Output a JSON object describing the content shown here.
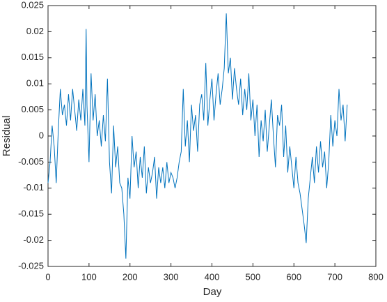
{
  "chart_data": {
    "type": "line",
    "xlabel": "Day",
    "ylabel": "Residual",
    "x": [
      0,
      5,
      10,
      15,
      20,
      25,
      30,
      35,
      40,
      45,
      50,
      55,
      60,
      65,
      70,
      75,
      80,
      85,
      90,
      93,
      95,
      100,
      105,
      110,
      115,
      120,
      125,
      130,
      135,
      140,
      145,
      150,
      155,
      160,
      165,
      170,
      175,
      180,
      185,
      190,
      195,
      200,
      205,
      210,
      215,
      220,
      225,
      230,
      235,
      240,
      245,
      250,
      255,
      260,
      265,
      270,
      275,
      280,
      285,
      290,
      295,
      300,
      305,
      310,
      315,
      320,
      325,
      330,
      335,
      340,
      345,
      350,
      355,
      360,
      365,
      370,
      375,
      380,
      385,
      390,
      395,
      400,
      405,
      410,
      415,
      420,
      425,
      430,
      435,
      440,
      445,
      450,
      455,
      460,
      465,
      470,
      475,
      480,
      485,
      490,
      495,
      500,
      505,
      510,
      515,
      520,
      525,
      530,
      535,
      540,
      545,
      550,
      555,
      560,
      565,
      570,
      575,
      580,
      585,
      590,
      595,
      600,
      605,
      610,
      615,
      620,
      625,
      630,
      635,
      640,
      645,
      650,
      655,
      660,
      665,
      670,
      675,
      680,
      685,
      690,
      695,
      700,
      705,
      710,
      715,
      720,
      725,
      730
    ],
    "series": [
      {
        "color": "#0072bd",
        "values": [
          -0.009,
          -0.005,
          0.002,
          -0.002,
          -0.009,
          0.001,
          0.009,
          0.004,
          0.006,
          0.002,
          0.008,
          0.003,
          0.009,
          0.005,
          0.001,
          0.007,
          0.003,
          0.009,
          0.002,
          0.0205,
          0.006,
          -0.005,
          0.012,
          0.003,
          0.008,
          0.0,
          0.003,
          -0.002,
          0.004,
          -0.001,
          0.011,
          -0.005,
          -0.011,
          0.002,
          -0.006,
          -0.002,
          -0.009,
          -0.01,
          -0.015,
          -0.0235,
          -0.008,
          -0.012,
          0.0,
          -0.006,
          -0.003,
          -0.01,
          -0.004,
          -0.008,
          -0.002,
          -0.011,
          -0.006,
          -0.009,
          -0.007,
          -0.004,
          -0.012,
          -0.006,
          -0.009,
          -0.006,
          -0.01,
          -0.005,
          -0.009,
          -0.007,
          -0.008,
          -0.01,
          -0.008,
          -0.005,
          -0.003,
          0.009,
          -0.002,
          0.003,
          -0.005,
          0.006,
          0.001,
          0.004,
          -0.003,
          0.006,
          0.008,
          0.003,
          0.014,
          0.002,
          0.007,
          0.011,
          0.003,
          0.008,
          0.012,
          0.006,
          0.009,
          0.013,
          0.0235,
          0.012,
          0.015,
          0.007,
          0.013,
          0.009,
          0.006,
          0.011,
          0.004,
          0.009,
          0.005,
          0.012,
          0.003,
          0.007,
          0.0,
          0.006,
          -0.004,
          0.003,
          -0.001,
          0.005,
          -0.003,
          0.002,
          0.007,
          0.0,
          -0.006,
          0.004,
          0.002,
          0.006,
          -0.004,
          0.002,
          -0.007,
          -0.002,
          -0.006,
          -0.01,
          -0.004,
          -0.009,
          -0.011,
          -0.014,
          -0.017,
          -0.0205,
          -0.012,
          -0.008,
          -0.004,
          -0.009,
          -0.002,
          -0.007,
          -0.001,
          -0.006,
          -0.003,
          -0.01,
          -0.005,
          0.004,
          -0.002,
          0.003,
          0.0,
          0.009,
          0.003,
          0.006,
          -0.001,
          0.006
        ]
      }
    ],
    "xlim": [
      0,
      800
    ],
    "xticks": [
      0,
      100,
      200,
      300,
      400,
      500,
      600,
      700,
      800
    ],
    "ylim": [
      -0.025,
      0.025
    ],
    "yticks": [
      -0.025,
      -0.02,
      -0.015,
      -0.01,
      -0.005,
      0,
      0.005,
      0.01,
      0.015,
      0.02,
      0.025
    ]
  }
}
